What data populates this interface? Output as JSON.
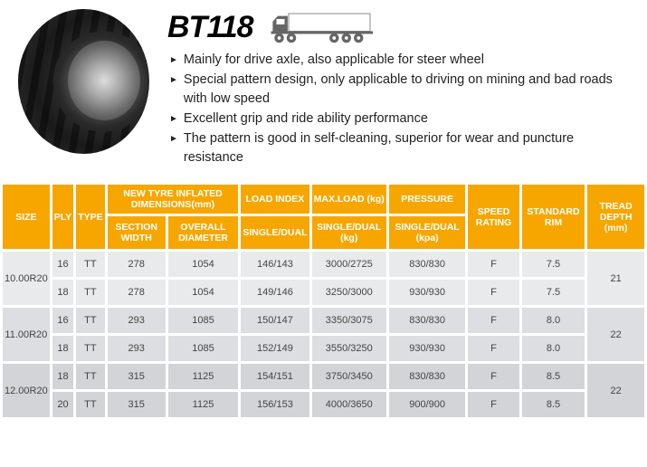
{
  "product": {
    "title": "BT118",
    "bullets": [
      "Mainly for drive axle, also applicable for steer wheel",
      "Special pattern design, only applicable to driving on mining and bad roads with low speed",
      "Excellent grip and ride ability performance",
      "The pattern is good in self-cleaning, superior for wear and puncture resistance"
    ]
  },
  "table": {
    "headers": {
      "size": "SIZE",
      "ply": "PLY",
      "type": "TYPE",
      "dims_group": "NEW TYRE INFLATED DIMENSIONS(mm)",
      "section_width": "SECTION WIDTH",
      "overall_diameter": "OVERALL DIAMETER",
      "load_index_group": "LOAD INDEX",
      "max_load_group": "MAX.LOAD (kg)",
      "pressure_group": "PRESSURE",
      "single_dual": "SINGLE/DUAL",
      "single_dual_kg": "SINGLE/DUAL (kg)",
      "single_dual_kpa": "SINGLE/DUAL (kpa)",
      "speed_rating": "SPEED RATING",
      "standard_rim": "STANDARD RIM",
      "tread_depth": "TREAD DEPTH (mm)"
    },
    "groups": [
      {
        "size": "10.00R20",
        "tread_depth": "21",
        "band": "band-a",
        "rows": [
          {
            "ply": "16",
            "type": "TT",
            "sw": "278",
            "od": "1054",
            "li": "146/143",
            "ml": "3000/2725",
            "pr": "830/830",
            "sr": "F",
            "rim": "7.5"
          },
          {
            "ply": "18",
            "type": "TT",
            "sw": "278",
            "od": "1054",
            "li": "149/146",
            "ml": "3250/3000",
            "pr": "930/930",
            "sr": "F",
            "rim": "7.5"
          }
        ]
      },
      {
        "size": "11.00R20",
        "tread_depth": "22",
        "band": "band-b",
        "rows": [
          {
            "ply": "16",
            "type": "TT",
            "sw": "293",
            "od": "1085",
            "li": "150/147",
            "ml": "3350/3075",
            "pr": "830/830",
            "sr": "F",
            "rim": "8.0"
          },
          {
            "ply": "18",
            "type": "TT",
            "sw": "293",
            "od": "1085",
            "li": "152/149",
            "ml": "3550/3250",
            "pr": "930/930",
            "sr": "F",
            "rim": "8.0"
          }
        ]
      },
      {
        "size": "12.00R20",
        "tread_depth": "22",
        "band": "band-c",
        "rows": [
          {
            "ply": "18",
            "type": "TT",
            "sw": "315",
            "od": "1125",
            "li": "154/151",
            "ml": "3750/3450",
            "pr": "830/830",
            "sr": "F",
            "rim": "8.5"
          },
          {
            "ply": "20",
            "type": "TT",
            "sw": "315",
            "od": "1125",
            "li": "156/153",
            "ml": "4000/3650",
            "pr": "900/900",
            "sr": "F",
            "rim": "8.5"
          }
        ]
      }
    ]
  }
}
